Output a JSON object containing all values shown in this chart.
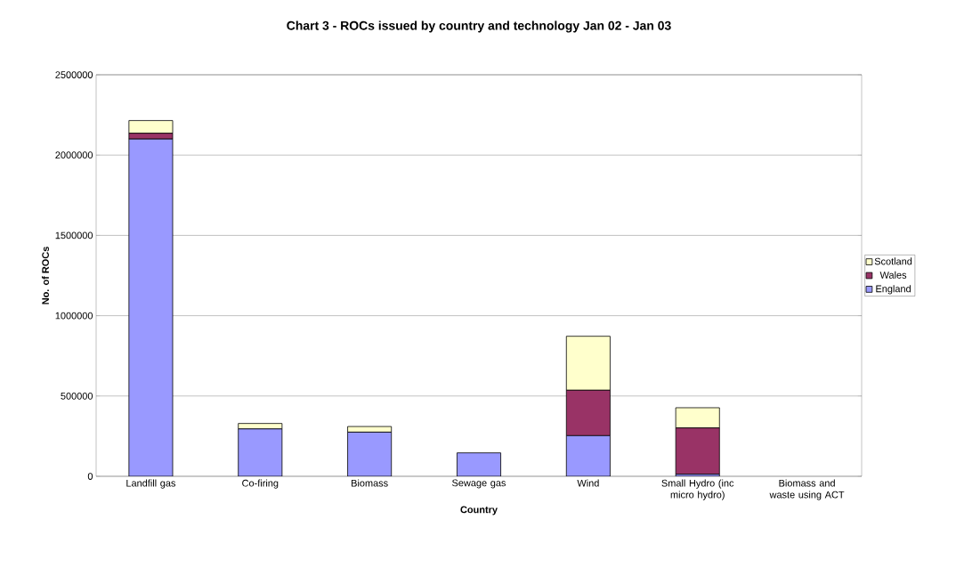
{
  "chart_data": {
    "type": "bar",
    "title": "Chart 3 - ROCs issued by country and technology Jan 02 - Jan 03",
    "xlabel": "Country",
    "ylabel": "No. of ROCs",
    "categories": [
      "Landfill gas",
      "Co-firing",
      "Biomass",
      "Sewage gas",
      "Wind",
      "Small Hydro (inc micro hydro)",
      "Biomass and waste using ACT"
    ],
    "stacked": true,
    "series": [
      {
        "name": "England",
        "color": "#9999ff",
        "values": [
          2100000,
          295000,
          275000,
          146000,
          253000,
          13000,
          0
        ]
      },
      {
        "name": "Wales",
        "color": "#993366",
        "values": [
          36000,
          0,
          0,
          0,
          283000,
          288000,
          0
        ]
      },
      {
        "name": "Scotland",
        "color": "#ffffcc",
        "values": [
          79000,
          34000,
          35000,
          0,
          336000,
          126000,
          0
        ]
      }
    ],
    "ylim": [
      0,
      2500000
    ],
    "yticks": [
      0,
      500000,
      1000000,
      1500000,
      2000000,
      2500000
    ],
    "grid": "y",
    "legend": "right"
  }
}
